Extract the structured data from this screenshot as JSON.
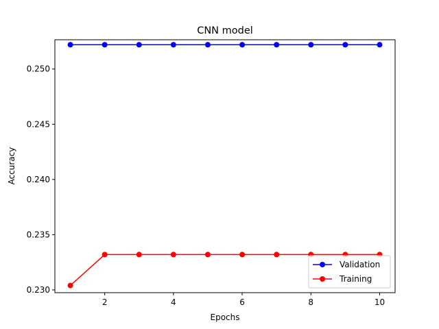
{
  "chart_data": {
    "type": "line",
    "title": "CNN model",
    "xlabel": "Epochs",
    "ylabel": "Accuracy",
    "x": [
      1,
      2,
      3,
      4,
      5,
      6,
      7,
      8,
      9,
      10
    ],
    "xlim": [
      0.55,
      10.45
    ],
    "ylim": [
      0.22975,
      0.25265
    ],
    "xticks": [
      2,
      4,
      6,
      8,
      10
    ],
    "yticks": [
      0.23,
      0.235,
      0.24,
      0.245,
      0.25
    ],
    "ytick_labels": [
      "0.230",
      "0.235",
      "0.240",
      "0.245",
      "0.250"
    ],
    "xtick_labels": [
      "2",
      "4",
      "6",
      "8",
      "10"
    ],
    "grid": false,
    "legend_position": "lower-right",
    "series": [
      {
        "name": "Validation",
        "color": "#0000ff",
        "marker": "circle",
        "values": [
          0.2522,
          0.2522,
          0.2522,
          0.2522,
          0.2522,
          0.2522,
          0.2522,
          0.2522,
          0.2522,
          0.2522
        ]
      },
      {
        "name": "Training",
        "color": "#ff0000",
        "marker": "circle",
        "values": [
          0.2304,
          0.2332,
          0.2332,
          0.2332,
          0.2332,
          0.2332,
          0.2332,
          0.2332,
          0.2332,
          0.2332
        ]
      }
    ]
  }
}
